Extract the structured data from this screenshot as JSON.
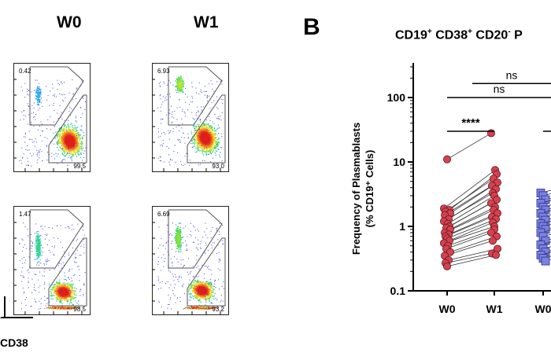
{
  "panel_a": {
    "col_w0": "W0",
    "col_w1": "W1",
    "gates": {
      "r0w0_top": "0.42",
      "r0w0_bot": "99.5",
      "r0w1_top": "6.93",
      "r0w1_bot": "93.0",
      "r1w0_top": "1.47",
      "r1w0_bot": "98.5",
      "r1w1_top": "6.69",
      "r1w1_bot": "93.2"
    },
    "x_axis_label": "CD38"
  },
  "panel_b": {
    "letter": "B",
    "title_parts": [
      "CD19",
      "+",
      " CD38",
      "+",
      " CD20",
      "-",
      " P"
    ]
  },
  "colors": {
    "red_series": "#d8404f",
    "blue_series": "#7b82e0",
    "red_line": "#3a1818"
  },
  "chart_data": {
    "type": "scatter",
    "title": "",
    "ylabel": "Frequency of Plasmablasts (% CD19+ Cells)",
    "ylabel_line1": "Frequency of Plasmablasts",
    "ylabel_line2": "(% CD19⁺ Cells)",
    "yscale": "log",
    "ylim": [
      0.1,
      300
    ],
    "yticks": [
      "100",
      "10",
      "1",
      "0.1"
    ],
    "ytick_values": [
      100,
      10,
      1,
      0.1
    ],
    "categories": [
      "W0",
      "W1",
      "W0"
    ],
    "paired_red": [
      [
        11.0,
        28.0
      ],
      [
        1.9,
        7.5
      ],
      [
        1.8,
        6.5
      ],
      [
        1.7,
        5.5
      ],
      [
        1.6,
        4.8
      ],
      [
        1.5,
        4.3
      ],
      [
        1.3,
        3.8
      ],
      [
        1.2,
        3.3
      ],
      [
        1.1,
        3.0
      ],
      [
        1.0,
        2.6
      ],
      [
        0.95,
        2.3
      ],
      [
        0.9,
        2.0
      ],
      [
        0.8,
        1.8
      ],
      [
        0.75,
        1.6
      ],
      [
        0.7,
        1.4
      ],
      [
        0.65,
        1.3
      ],
      [
        0.6,
        1.15
      ],
      [
        0.55,
        1.0
      ],
      [
        0.5,
        0.9
      ],
      [
        0.45,
        0.8
      ],
      [
        0.4,
        0.7
      ],
      [
        0.35,
        0.6
      ],
      [
        0.3,
        0.45
      ],
      [
        0.27,
        0.38
      ],
      [
        0.24,
        0.36
      ]
    ],
    "blue_w0_values": [
      3.3,
      3.0,
      2.6,
      2.3,
      2.0,
      1.8,
      1.6,
      1.4,
      1.25,
      1.1,
      1.0,
      0.9,
      0.8,
      0.7,
      0.6,
      0.52,
      0.45,
      0.4,
      0.36,
      0.32,
      0.29
    ],
    "significance": [
      {
        "label": "****",
        "from": "W0",
        "to": "W1",
        "y": 30
      },
      {
        "label": "ns",
        "from": "W0",
        "to": "W0 (group 2)",
        "y": 100
      },
      {
        "label": "ns",
        "from": "W1",
        "to": "beyond",
        "y": 165
      },
      {
        "label": "",
        "from": "W0 (group 2)",
        "to": "beyond",
        "y": 30
      }
    ]
  }
}
